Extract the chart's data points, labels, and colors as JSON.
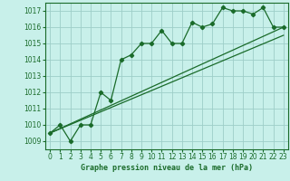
{
  "title": "Graphe pression niveau de la mer (hPa)",
  "bg_color": "#c8f0ea",
  "grid_color": "#9ecec8",
  "line_color": "#1a6b2a",
  "xlim": [
    -0.5,
    23.5
  ],
  "ylim": [
    1008.5,
    1017.5
  ],
  "yticks": [
    1009,
    1010,
    1011,
    1012,
    1013,
    1014,
    1015,
    1016,
    1017
  ],
  "xticks": [
    0,
    1,
    2,
    3,
    4,
    5,
    6,
    7,
    8,
    9,
    10,
    11,
    12,
    13,
    14,
    15,
    16,
    17,
    18,
    19,
    20,
    21,
    22,
    23
  ],
  "series1": [
    1009.5,
    1010.0,
    1009.0,
    1010.0,
    1010.0,
    1012.0,
    1011.5,
    1014.0,
    1014.3,
    1015.0,
    1015.0,
    1015.8,
    1015.0,
    1015.0,
    1016.3,
    1016.0,
    1016.2,
    1017.2,
    1017.0,
    1017.0,
    1016.8,
    1017.2,
    1016.0,
    1016.0
  ],
  "line1_x": [
    0,
    23
  ],
  "line1_y": [
    1009.5,
    1016.0
  ],
  "line2_x": [
    0,
    23
  ],
  "line2_y": [
    1009.5,
    1015.5
  ]
}
